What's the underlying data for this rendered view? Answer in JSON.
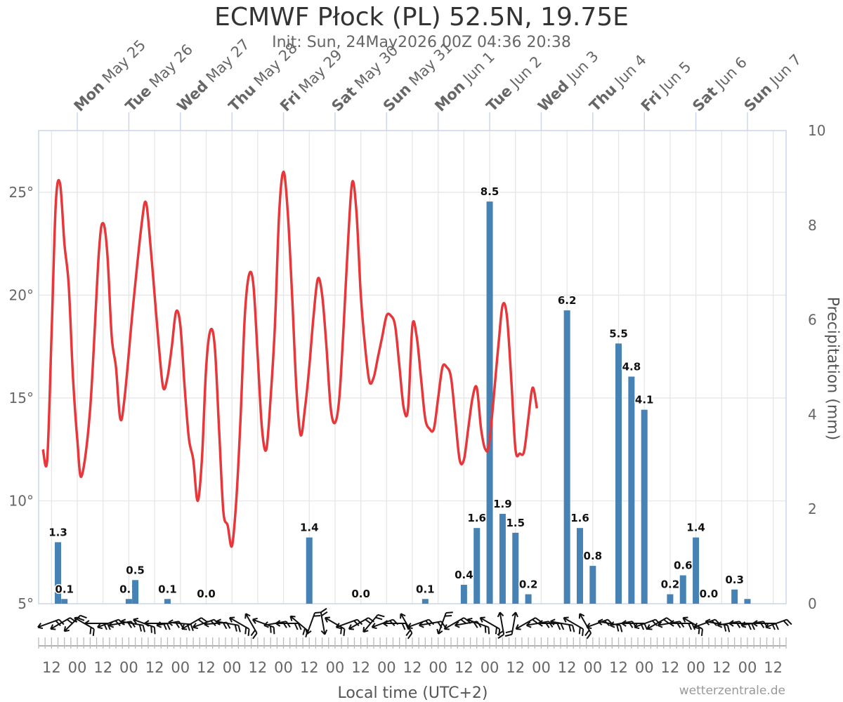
{
  "title": "ECMWF Płock (PL) 52.5N, 19.75E",
  "subtitle": "Init: Sun, 24May2026 00Z 04:36 20:38",
  "xlabel": "Local time (UTC+2)",
  "credits": "wetterzentrale.de",
  "chart_data": {
    "type": "bar+line",
    "x_axis": {
      "start": "2026-05-24 06:00",
      "end": "2026-06-07 18:00",
      "tick_labels": [
        "12",
        "00",
        "12",
        "00",
        "12",
        "00",
        "12",
        "00",
        "12",
        "00",
        "12",
        "00",
        "12",
        "00",
        "12",
        "00",
        "12",
        "00",
        "12",
        "00",
        "12",
        "00",
        "12",
        "00",
        "12",
        "00",
        "12",
        "00",
        "12"
      ],
      "day_labels": [
        {
          "dow": "Mon",
          "date": "May 25"
        },
        {
          "dow": "Tue",
          "date": "May 26"
        },
        {
          "dow": "Wed",
          "date": "May 27"
        },
        {
          "dow": "Thu",
          "date": "May 28"
        },
        {
          "dow": "Fri",
          "date": "May 29"
        },
        {
          "dow": "Sat",
          "date": "May 30"
        },
        {
          "dow": "Sun",
          "date": "May 31"
        },
        {
          "dow": "Mon",
          "date": "Jun 1"
        },
        {
          "dow": "Tue",
          "date": "Jun 2"
        },
        {
          "dow": "Wed",
          "date": "Jun 3"
        },
        {
          "dow": "Thu",
          "date": "Jun 4"
        },
        {
          "dow": "Fri",
          "date": "Jun 5"
        },
        {
          "dow": "Sat",
          "date": "Jun 6"
        },
        {
          "dow": "Sun",
          "date": "Jun 7"
        }
      ]
    },
    "y_axis_left": {
      "ylim": [
        5,
        28
      ],
      "tick_labels": [
        "5°",
        "10°",
        "15°",
        "20°",
        "25°"
      ]
    },
    "y_axis_right": {
      "label": "Precipitation (mm)",
      "ylim": [
        0,
        10
      ],
      "tick_labels": [
        "0",
        "2",
        "4",
        "6",
        "8",
        "10"
      ]
    },
    "series": [
      {
        "name": "Temperature",
        "type": "line",
        "color": "#e8373a",
        "points": [
          [
            "2026-05-24 08:00",
            12.5
          ],
          [
            "2026-05-24 10:00",
            12.0
          ],
          [
            "2026-05-24 12:00",
            18.0
          ],
          [
            "2026-05-24 14:00",
            24.5
          ],
          [
            "2026-05-24 16:00",
            25.4
          ],
          [
            "2026-05-24 18:00",
            22.5
          ],
          [
            "2026-05-24 20:00",
            20.5
          ],
          [
            "2026-05-24 22:00",
            16.0
          ],
          [
            "2026-05-25 00:00",
            13.0
          ],
          [
            "2026-05-25 02:00",
            11.2
          ],
          [
            "2026-05-25 06:00",
            14.5
          ],
          [
            "2026-05-25 10:00",
            22.0
          ],
          [
            "2026-05-25 12:00",
            23.5
          ],
          [
            "2026-05-25 14:00",
            22.0
          ],
          [
            "2026-05-25 16:00",
            18.0
          ],
          [
            "2026-05-25 18:00",
            16.5
          ],
          [
            "2026-05-25 20:00",
            14.0
          ],
          [
            "2026-05-25 22:00",
            15.0
          ],
          [
            "2026-05-26 02:00",
            19.5
          ],
          [
            "2026-05-26 06:00",
            23.5
          ],
          [
            "2026-05-26 08:00",
            24.5
          ],
          [
            "2026-05-26 10:00",
            22.5
          ],
          [
            "2026-05-26 12:00",
            20.0
          ],
          [
            "2026-05-26 14:00",
            17.5
          ],
          [
            "2026-05-26 16:00",
            15.5
          ],
          [
            "2026-05-26 18:00",
            16.0
          ],
          [
            "2026-05-26 20:00",
            17.5
          ],
          [
            "2026-05-26 22:00",
            19.2
          ],
          [
            "2026-05-27 00:00",
            18.5
          ],
          [
            "2026-05-27 02:00",
            15.5
          ],
          [
            "2026-05-27 04:00",
            13.0
          ],
          [
            "2026-05-27 06:00",
            12.0
          ],
          [
            "2026-05-27 08:00",
            10.0
          ],
          [
            "2026-05-27 10:00",
            12.0
          ],
          [
            "2026-05-27 12:00",
            16.5
          ],
          [
            "2026-05-27 14:00",
            18.3
          ],
          [
            "2026-05-27 16:00",
            17.5
          ],
          [
            "2026-05-27 18:00",
            13.5
          ],
          [
            "2026-05-27 20:00",
            9.5
          ],
          [
            "2026-05-27 22:00",
            8.8
          ],
          [
            "2026-05-28 00:00",
            7.8
          ],
          [
            "2026-05-28 02:00",
            10.0
          ],
          [
            "2026-05-28 04:00",
            14.0
          ],
          [
            "2026-05-28 06:00",
            19.0
          ],
          [
            "2026-05-28 08:00",
            21.0
          ],
          [
            "2026-05-28 10:00",
            20.5
          ],
          [
            "2026-05-28 12:00",
            17.0
          ],
          [
            "2026-05-28 14:00",
            13.5
          ],
          [
            "2026-05-28 16:00",
            12.5
          ],
          [
            "2026-05-28 18:00",
            15.0
          ],
          [
            "2026-05-28 20:00",
            18.5
          ],
          [
            "2026-05-28 22:00",
            24.0
          ],
          [
            "2026-05-29 00:00",
            26.0
          ],
          [
            "2026-05-29 02:00",
            24.0
          ],
          [
            "2026-05-29 04:00",
            20.0
          ],
          [
            "2026-05-29 06:00",
            15.5
          ],
          [
            "2026-05-29 08:00",
            13.2
          ],
          [
            "2026-05-29 10:00",
            14.5
          ],
          [
            "2026-05-29 12:00",
            16.5
          ],
          [
            "2026-05-29 14:00",
            19.0
          ],
          [
            "2026-05-29 16:00",
            20.8
          ],
          [
            "2026-05-29 18:00",
            20.0
          ],
          [
            "2026-05-29 20:00",
            17.5
          ],
          [
            "2026-05-29 22:00",
            14.5
          ],
          [
            "2026-05-30 00:00",
            13.8
          ],
          [
            "2026-05-30 02:00",
            15.0
          ],
          [
            "2026-05-30 04:00",
            18.5
          ],
          [
            "2026-05-30 06:00",
            22.5
          ],
          [
            "2026-05-30 08:00",
            25.5
          ],
          [
            "2026-05-30 10:00",
            24.0
          ],
          [
            "2026-05-30 12:00",
            20.0
          ],
          [
            "2026-05-30 14:00",
            17.5
          ],
          [
            "2026-05-30 16:00",
            15.8
          ],
          [
            "2026-05-30 18:00",
            16.0
          ],
          [
            "2026-05-30 20:00",
            17.0
          ],
          [
            "2026-05-30 22:00",
            18.0
          ],
          [
            "2026-05-31 00:00",
            19.0
          ],
          [
            "2026-05-31 02:00",
            19.0
          ],
          [
            "2026-05-31 04:00",
            18.5
          ],
          [
            "2026-05-31 06:00",
            16.5
          ],
          [
            "2026-05-31 08:00",
            14.5
          ],
          [
            "2026-05-31 10:00",
            14.5
          ],
          [
            "2026-05-31 12:00",
            18.5
          ],
          [
            "2026-05-31 14:00",
            18.0
          ],
          [
            "2026-05-31 16:00",
            16.0
          ],
          [
            "2026-05-31 18:00",
            14.0
          ],
          [
            "2026-05-31 20:00",
            13.5
          ],
          [
            "2026-05-31 22:00",
            13.5
          ],
          [
            "2026-06-01 00:00",
            15.0
          ],
          [
            "2026-06-01 02:00",
            16.5
          ],
          [
            "2026-06-01 04:00",
            16.5
          ],
          [
            "2026-06-01 06:00",
            16.0
          ],
          [
            "2026-06-01 08:00",
            14.0
          ],
          [
            "2026-06-01 10:00",
            12.0
          ],
          [
            "2026-06-01 12:00",
            12.0
          ],
          [
            "2026-06-01 14:00",
            13.5
          ],
          [
            "2026-06-01 16:00",
            15.0
          ],
          [
            "2026-06-01 18:00",
            15.5
          ],
          [
            "2026-06-01 20:00",
            13.5
          ],
          [
            "2026-06-01 22:00",
            12.5
          ],
          [
            "2026-06-02 00:00",
            13.0
          ],
          [
            "2026-06-02 04:00",
            17.5
          ],
          [
            "2026-06-02 06:00",
            19.5
          ],
          [
            "2026-06-02 08:00",
            19.0
          ],
          [
            "2026-06-02 10:00",
            16.0
          ],
          [
            "2026-06-02 12:00",
            12.5
          ],
          [
            "2026-06-02 14:00",
            12.3
          ],
          [
            "2026-06-02 16:00",
            12.4
          ],
          [
            "2026-06-02 18:00",
            14.0
          ],
          [
            "2026-06-02 20:00",
            15.5
          ],
          [
            "2026-06-02 22:00",
            14.5
          ]
        ]
      },
      {
        "name": "Precipitation",
        "type": "bar",
        "color": "#4682b4",
        "values": [
          {
            "t": "2026-05-24 15:00",
            "mm": 1.3
          },
          {
            "t": "2026-05-24 18:00",
            "mm": 0.1
          },
          {
            "t": "2026-05-26 00:00",
            "mm": 0.1
          },
          {
            "t": "2026-05-26 03:00",
            "mm": 0.5
          },
          {
            "t": "2026-05-26 18:00",
            "mm": 0.1
          },
          {
            "t": "2026-05-27 12:00",
            "mm": 0.0
          },
          {
            "t": "2026-05-29 12:00",
            "mm": 1.4
          },
          {
            "t": "2026-05-30 12:00",
            "mm": 0.0
          },
          {
            "t": "2026-05-31 18:00",
            "mm": 0.1
          },
          {
            "t": "2026-06-01 12:00",
            "mm": 0.4
          },
          {
            "t": "2026-06-01 18:00",
            "mm": 1.6
          },
          {
            "t": "2026-06-02 00:00",
            "mm": 8.5
          },
          {
            "t": "2026-06-02 06:00",
            "mm": 1.9
          },
          {
            "t": "2026-06-02 12:00",
            "mm": 1.5
          },
          {
            "t": "2026-06-02 18:00",
            "mm": 0.2
          },
          {
            "t": "2026-06-03 12:00",
            "mm": 6.2
          },
          {
            "t": "2026-06-03 18:00",
            "mm": 1.6
          },
          {
            "t": "2026-06-04 00:00",
            "mm": 0.8
          },
          {
            "t": "2026-06-04 12:00",
            "mm": 5.5
          },
          {
            "t": "2026-06-04 18:00",
            "mm": 4.8
          },
          {
            "t": "2026-06-05 00:00",
            "mm": 4.1
          },
          {
            "t": "2026-06-05 12:00",
            "mm": 0.2
          },
          {
            "t": "2026-06-05 18:00",
            "mm": 0.6
          },
          {
            "t": "2026-06-06 00:00",
            "mm": 1.4
          },
          {
            "t": "2026-06-06 06:00",
            "mm": 0.0
          },
          {
            "t": "2026-06-06 18:00",
            "mm": 0.3
          },
          {
            "t": "2026-06-07 00:00",
            "mm": 0.1
          }
        ],
        "labels": [
          "1.3",
          "0.1",
          "0.1",
          "0.5",
          "0.1",
          "0.0",
          "1.4",
          "0.0",
          "0.1",
          "0.4",
          "1.6",
          "8.5",
          "1.9",
          "1.5",
          "0.2",
          "6.2",
          "1.6",
          "0.8",
          "5.5",
          "4.8",
          "4.1",
          "0.2",
          "0.6",
          "1.4",
          "0.0",
          "0.3",
          ""
        ]
      },
      {
        "name": "Wind",
        "type": "wind-barbs",
        "color": "#111111",
        "directions_deg": [
          250,
          240,
          225,
          300,
          270,
          250,
          260,
          280,
          290,
          270,
          260,
          275,
          240,
          250,
          265,
          280,
          300,
          330,
          290,
          260,
          270,
          310,
          200,
          170,
          300,
          250,
          240,
          220,
          250,
          270,
          330,
          250,
          260,
          200,
          240,
          260,
          290,
          300,
          350,
          10,
          240,
          260,
          270,
          280,
          300,
          330,
          250,
          280,
          260,
          270,
          250,
          240,
          260,
          270,
          300,
          250,
          280,
          260,
          270,
          260,
          270,
          250
        ]
      }
    ],
    "grid": true,
    "legend": "none"
  }
}
